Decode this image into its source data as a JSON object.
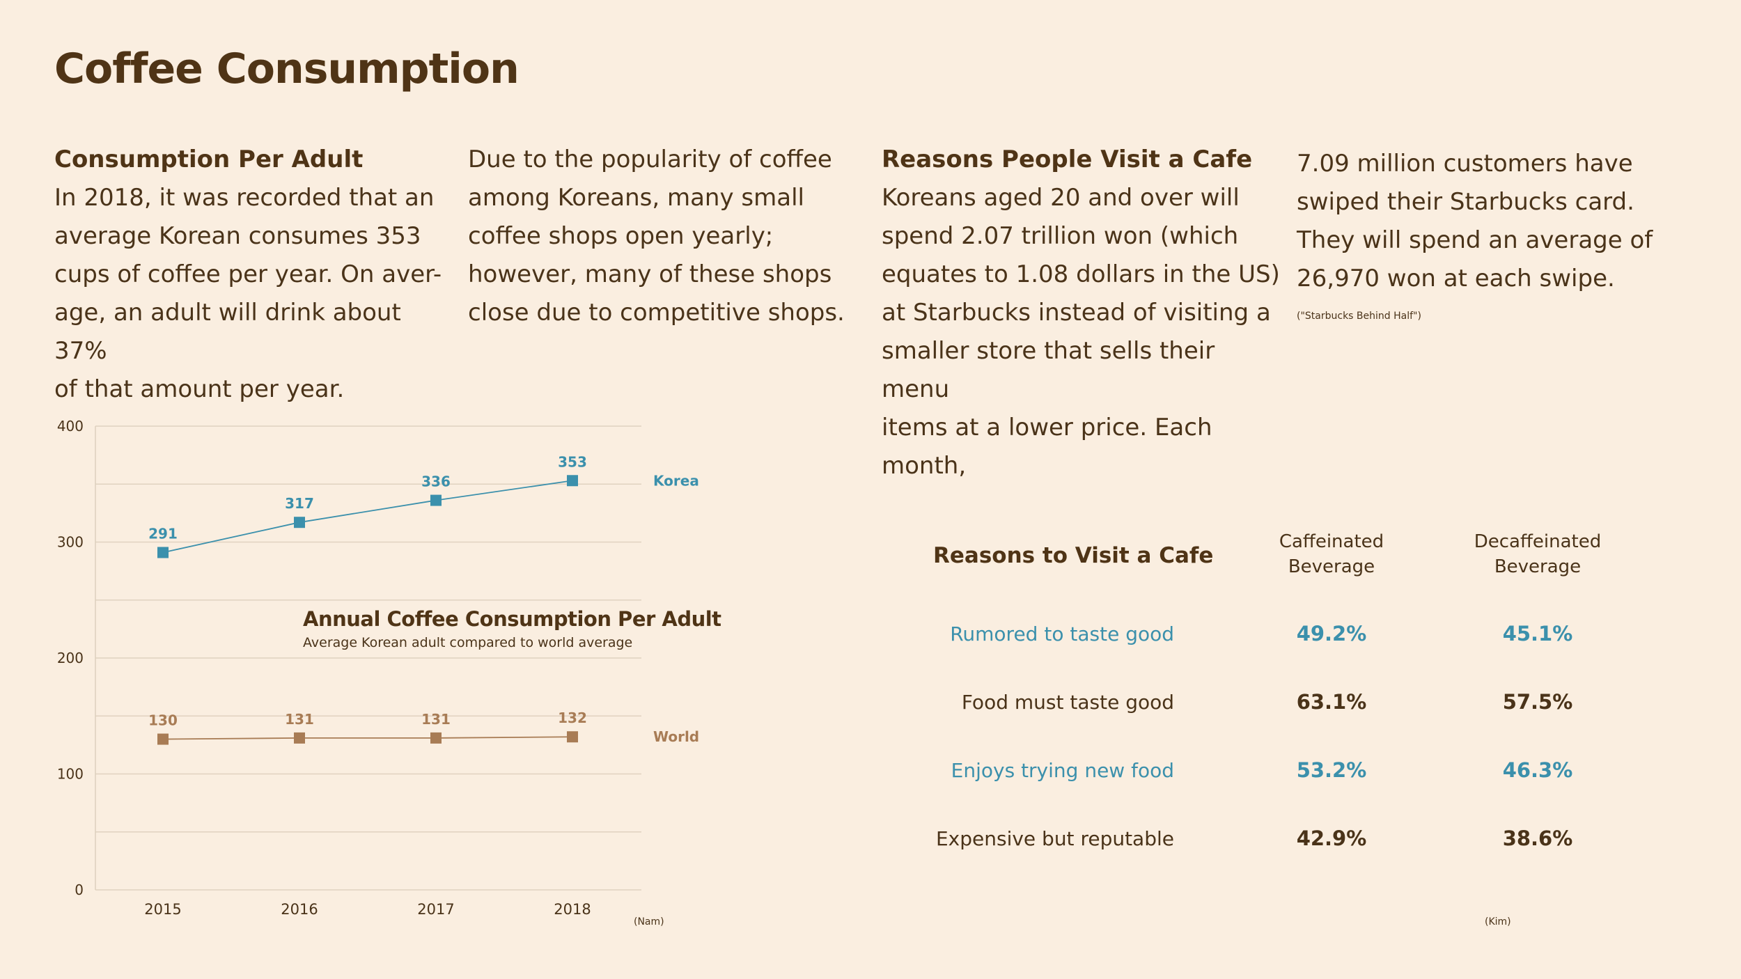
{
  "page": {
    "title": "Coffee Consumption"
  },
  "columns": {
    "c1": {
      "heading": "Consumption Per Adult",
      "lines": [
        "In 2018, it was recorded that an",
        "average Korean consumes 353",
        "cups of coffee per year. On aver-",
        "age, an adult will drink about 37%",
        "of that amount per year."
      ]
    },
    "c2": {
      "lines": [
        "Due to the popularity of coffee",
        "among Koreans, many small",
        "coffee shops open yearly;",
        "however, many of these shops",
        "close due to competitive shops."
      ]
    },
    "c3": {
      "heading": "Reasons People Visit a Cafe",
      "lines": [
        "Koreans aged 20 and over will",
        "spend 2.07 trillion won (which",
        "equates to 1.08 dollars in the US)",
        "at Starbucks instead of visiting a",
        "smaller store that sells their menu",
        "items at a lower price. Each month,"
      ]
    },
    "c4": {
      "lines": [
        "7.09 million customers have",
        "swiped their Starbucks card.",
        "They will spend an average of",
        "26,970 won at each swipe."
      ],
      "citation": "(\"Starbucks Behind Half\")"
    }
  },
  "chart_data": {
    "type": "line",
    "title": "Annual Coffee Consumption Per Adult",
    "subtitle": "Average Korean adult compared to world average",
    "categories": [
      "2015",
      "2016",
      "2017",
      "2018"
    ],
    "ylim": [
      0,
      400
    ],
    "yticks": [
      "0",
      "100",
      "200",
      "300",
      "400"
    ],
    "ytick_values": [
      0,
      100,
      200,
      300,
      400
    ],
    "grid": true,
    "series": [
      {
        "name": "Korea",
        "values": [
          291,
          317,
          336,
          353
        ],
        "color": "#3b90ac"
      },
      {
        "name": "World",
        "values": [
          130,
          131,
          131,
          132
        ],
        "color": "#a87c55"
      }
    ],
    "citation": "(Nam)"
  },
  "table": {
    "title": "Reasons to Visit a Cafe",
    "col1_header": [
      "Caffeinated",
      "Beverage"
    ],
    "col2_header": [
      "Decaffeinated",
      "Beverage"
    ],
    "rows": [
      {
        "label": "Rumored to taste good",
        "caffeinated": "49.2%",
        "decaffeinated": "45.1%",
        "color": "#3b90ac"
      },
      {
        "label": "Food must taste good",
        "caffeinated": "63.1%",
        "decaffeinated": "57.5%",
        "color": "#4a3319"
      },
      {
        "label": "Enjoys trying new food",
        "caffeinated": "53.2%",
        "decaffeinated": "46.3%",
        "color": "#3b90ac"
      },
      {
        "label": "Expensive but reputable",
        "caffeinated": "42.9%",
        "decaffeinated": "38.6%",
        "color": "#4a3319"
      }
    ],
    "citation": "(Kim)"
  }
}
